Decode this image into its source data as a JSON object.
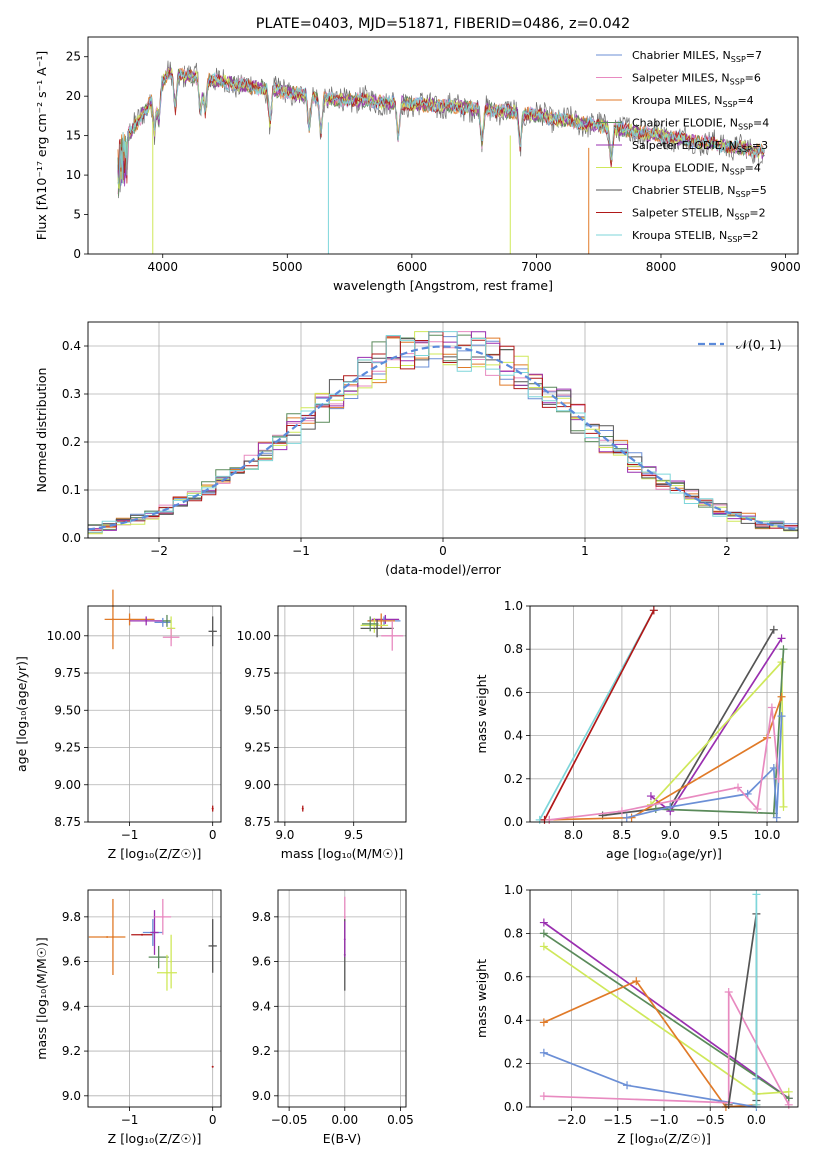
{
  "title": "PLATE=0403, MJD=51871, FIBERID=0486, z=0.042",
  "colors": {
    "Chabrier MILES": "#6b8fd6",
    "Salpeter MILES": "#e88ac0",
    "Kroupa MILES": "#e07a28",
    "Chabrier ELODIE": "#5a8a5a",
    "Salpeter ELODIE": "#9a2fb0",
    "Kroupa ELODIE": "#cfe85a",
    "Chabrier STELIB": "#555555",
    "Salpeter STELIB": "#b01818",
    "Kroupa STELIB": "#7ed6da",
    "normal": "#5b8bdb"
  },
  "chart_data": [
    {
      "id": "spectrum",
      "type": "line",
      "title": "PLATE=0403, MJD=51871, FIBERID=0486, z=0.042",
      "xlabel": "wavelength [Angstrom, rest frame]",
      "ylabel": "Flux [fλ10⁻¹⁷ erg cm⁻² s⁻¹ A⁻¹]",
      "xlim": [
        3400,
        9100
      ],
      "ylim": [
        0,
        27.5
      ],
      "xticks": [
        4000,
        5000,
        6000,
        7000,
        8000,
        9000
      ],
      "yticks": [
        0,
        5,
        10,
        15,
        20,
        25
      ],
      "legend_position": "top-right",
      "legend": [
        {
          "name": "Chabrier MILES",
          "nssp": "7"
        },
        {
          "name": "Salpeter MILES",
          "nssp": "6"
        },
        {
          "name": "Kroupa MILES",
          "nssp": "4"
        },
        {
          "name": "Chabrier ELODIE",
          "nssp": "4"
        },
        {
          "name": "Salpeter ELODIE",
          "nssp": "3"
        },
        {
          "name": "Kroupa ELODIE",
          "nssp": "4"
        },
        {
          "name": "Chabrier STELIB",
          "nssp": "5"
        },
        {
          "name": "Salpeter STELIB",
          "nssp": "2"
        },
        {
          "name": "Kroupa STELIB",
          "nssp": "2"
        }
      ],
      "continuum": {
        "x": [
          3650,
          3750,
          3850,
          3950,
          4050,
          4200,
          4400,
          4600,
          4800,
          5000,
          5200,
          5400,
          5600,
          5800,
          6000,
          6200,
          6400,
          6600,
          6800,
          7000,
          7200,
          7400,
          7600,
          7800,
          8000,
          8200,
          8400,
          8600,
          8800
        ],
        "y": [
          14.5,
          15.5,
          18,
          20.5,
          23,
          22.5,
          22,
          21.5,
          21,
          20.5,
          20,
          19.5,
          19.5,
          19.2,
          19,
          18.8,
          18.6,
          18.3,
          18,
          17.6,
          17,
          16.5,
          16,
          15.5,
          15,
          14.5,
          14,
          13.5,
          13
        ]
      },
      "data_range": [
        3640,
        8830
      ],
      "drops": [
        {
          "x": 3920,
          "y": 0,
          "series": "Kroupa ELODIE"
        },
        {
          "x": 5330,
          "y": 0,
          "series": "Kroupa STELIB"
        },
        {
          "x": 6790,
          "y": 0,
          "series": "Kroupa ELODIE"
        },
        {
          "x": 7420,
          "y": 0,
          "series": "Kroupa MILES"
        }
      ]
    },
    {
      "id": "residuals",
      "type": "bar",
      "xlabel": "(data-model)/error",
      "ylabel": "Normed distribution",
      "xlim": [
        -2.5,
        2.5
      ],
      "ylim": [
        0,
        0.45
      ],
      "xticks": [
        -2,
        -1,
        0,
        1,
        2
      ],
      "yticks": [
        0.0,
        0.1,
        0.2,
        0.3,
        0.4
      ],
      "legend": {
        "label": "𝒩(0, 1)",
        "position": "top-right"
      },
      "bin_width": 0.1,
      "grid": true
    },
    {
      "id": "age_vs_Z",
      "type": "scatter",
      "xlabel": "Z [log₁₀(Z/Z☉)]",
      "ylabel": "age  [log₁₀(age/yr)]",
      "xlim": [
        -1.5,
        0.1
      ],
      "ylim": [
        8.75,
        10.2
      ],
      "xticks": [
        -1,
        0
      ],
      "yticks": [
        8.75,
        9.0,
        9.25,
        9.5,
        9.75,
        10.0
      ],
      "grid": true,
      "points": [
        {
          "x": -1.0,
          "y": 10.11,
          "xe": 0.3,
          "ye": 0.04,
          "series": "Kroupa MILES"
        },
        {
          "x": -1.2,
          "y": 10.11,
          "xe": 0.0,
          "ye": 0.2,
          "series": "Kroupa MILES"
        },
        {
          "x": -0.8,
          "y": 10.1,
          "xe": 0.2,
          "ye": 0.03,
          "series": "Salpeter ELODIE"
        },
        {
          "x": -0.6,
          "y": 10.09,
          "xe": 0.1,
          "ye": 0.03,
          "series": "Chabrier MILES"
        },
        {
          "x": -0.55,
          "y": 10.1,
          "xe": 0.05,
          "ye": 0.04,
          "series": "Chabrier ELODIE"
        },
        {
          "x": -0.5,
          "y": 10.05,
          "xe": 0.05,
          "ye": 0.08,
          "series": "Kroupa ELODIE"
        },
        {
          "x": -0.5,
          "y": 9.99,
          "xe": 0.1,
          "ye": 0.06,
          "series": "Salpeter MILES"
        },
        {
          "x": 0.0,
          "y": 10.03,
          "xe": 0.05,
          "ye": 0.1,
          "series": "Chabrier STELIB"
        },
        {
          "x": 0.0,
          "y": 8.84,
          "xe": 0.0,
          "ye": 0.02,
          "series": "Salpeter STELIB"
        }
      ]
    },
    {
      "id": "age_vs_mass",
      "type": "scatter",
      "xlabel": "mass [log₁₀(M/M☉)]",
      "ylabel": "",
      "xlim": [
        8.95,
        9.88
      ],
      "ylim": [
        8.75,
        10.2
      ],
      "xticks": [
        9.0,
        9.5
      ],
      "yticks": [
        8.75,
        9.0,
        9.25,
        9.5,
        9.75,
        10.0
      ],
      "grid": true,
      "points": [
        {
          "x": 9.73,
          "y": 10.11,
          "xe": 0.1,
          "ye": 0.03,
          "series": "Salpeter ELODIE"
        },
        {
          "x": 9.72,
          "y": 10.1,
          "xe": 0.12,
          "ye": 0.03,
          "series": "Chabrier MILES"
        },
        {
          "x": 9.7,
          "y": 10.1,
          "xe": 0.1,
          "ye": 0.05,
          "series": "Kroupa MILES"
        },
        {
          "x": 9.65,
          "y": 10.07,
          "xe": 0.1,
          "ye": 0.05,
          "series": "Kroupa ELODIE"
        },
        {
          "x": 9.67,
          "y": 10.05,
          "xe": 0.12,
          "ye": 0.06,
          "series": "Chabrier STELIB"
        },
        {
          "x": 9.78,
          "y": 10.0,
          "xe": 0.08,
          "ye": 0.1,
          "series": "Salpeter MILES"
        },
        {
          "x": 9.62,
          "y": 10.08,
          "xe": 0.06,
          "ye": 0.05,
          "series": "Chabrier ELODIE"
        },
        {
          "x": 9.13,
          "y": 8.84,
          "xe": 0.0,
          "ye": 0.02,
          "series": "Salpeter STELIB"
        }
      ]
    },
    {
      "id": "weight_vs_age",
      "type": "line",
      "xlabel": "age  [log₁₀(age/yr)]",
      "ylabel": "mass weight",
      "xlim": [
        7.55,
        10.32
      ],
      "ylim": [
        0,
        1.0
      ],
      "xticks": [
        8.0,
        8.5,
        9.0,
        9.5,
        10.0
      ],
      "yticks": [
        0.0,
        0.2,
        0.4,
        0.6,
        0.8,
        1.0
      ],
      "grid": true,
      "series": [
        {
          "name": "Kroupa STELIB",
          "x": [
            7.65,
            8.83
          ],
          "y": [
            0.01,
            0.98
          ]
        },
        {
          "name": "Salpeter STELIB",
          "x": [
            7.7,
            8.83
          ],
          "y": [
            0.01,
            0.98
          ]
        },
        {
          "name": "Chabrier STELIB",
          "x": [
            8.3,
            9.0,
            10.07
          ],
          "y": [
            0.03,
            0.07,
            0.89
          ]
        },
        {
          "name": "Salpeter ELODIE",
          "x": [
            8.8,
            9.0,
            10.15
          ],
          "y": [
            0.12,
            0.05,
            0.85
          ]
        },
        {
          "name": "Kroupa ELODIE",
          "x": [
            8.8,
            10.15,
            10.17
          ],
          "y": [
            0.08,
            0.74,
            0.07
          ]
        },
        {
          "name": "Chabrier ELODIE",
          "x": [
            8.85,
            10.07,
            10.17
          ],
          "y": [
            0.06,
            0.04,
            0.8
          ]
        },
        {
          "name": "Kroupa MILES",
          "x": [
            7.75,
            8.6,
            10.0,
            10.15
          ],
          "y": [
            0.01,
            0.02,
            0.39,
            0.58
          ]
        },
        {
          "name": "Chabrier MILES",
          "x": [
            8.55,
            9.0,
            9.8,
            10.07,
            10.1,
            10.15
          ],
          "y": [
            0.02,
            0.07,
            0.13,
            0.25,
            0.02,
            0.49
          ]
        },
        {
          "name": "Salpeter MILES",
          "x": [
            7.75,
            8.5,
            9.7,
            9.9,
            10.05,
            10.12
          ],
          "y": [
            0.01,
            0.05,
            0.16,
            0.06,
            0.53,
            0.2
          ]
        }
      ]
    },
    {
      "id": "mass_vs_Z",
      "type": "scatter",
      "xlabel": "Z [log₁₀(Z/Z☉)]",
      "ylabel": "mass [log₁₀(M/M☉)]",
      "xlim": [
        -1.5,
        0.1
      ],
      "ylim": [
        8.95,
        9.92
      ],
      "xticks": [
        -1,
        0
      ],
      "yticks": [
        9.0,
        9.2,
        9.4,
        9.6,
        9.8
      ],
      "grid": true,
      "points": [
        {
          "x": -1.27,
          "y": 9.71,
          "xe": 0.22,
          "ye": 0.0,
          "series": "Kroupa MILES"
        },
        {
          "x": -1.2,
          "y": 9.71,
          "xe": 0.0,
          "ye": 0.17,
          "series": "Kroupa MILES"
        },
        {
          "x": -0.85,
          "y": 9.72,
          "xe": 0.13,
          "ye": 0.0,
          "series": "Salpeter STELIB"
        },
        {
          "x": -0.72,
          "y": 9.73,
          "xe": 0.12,
          "ye": 0.06,
          "series": "Chabrier MILES"
        },
        {
          "x": -0.7,
          "y": 9.73,
          "xe": 0.05,
          "ye": 0.1,
          "series": "Salpeter ELODIE"
        },
        {
          "x": -0.6,
          "y": 9.8,
          "xe": 0.1,
          "ye": 0.08,
          "series": "Salpeter MILES"
        },
        {
          "x": -0.65,
          "y": 9.62,
          "xe": 0.12,
          "ye": 0.05,
          "series": "Chabrier ELODIE"
        },
        {
          "x": -0.55,
          "y": 9.55,
          "xe": 0.12,
          "ye": 0.08,
          "series": "Kroupa ELODIE"
        },
        {
          "x": -0.5,
          "y": 9.6,
          "xe": 0.0,
          "ye": 0.12,
          "series": "Kroupa ELODIE"
        },
        {
          "x": 0.0,
          "y": 9.67,
          "xe": 0.05,
          "ye": 0.12,
          "series": "Chabrier STELIB"
        },
        {
          "x": 0.0,
          "y": 9.13,
          "xe": 0.0,
          "ye": 0.0,
          "series": "Salpeter STELIB"
        }
      ]
    },
    {
      "id": "mass_vs_ebv",
      "type": "scatter",
      "xlabel": "E(B-V)",
      "ylabel": "",
      "xlim": [
        -0.06,
        0.055
      ],
      "ylim": [
        8.95,
        9.92
      ],
      "xticks": [
        -0.05,
        0.0,
        0.05
      ],
      "yticks": [
        9.0,
        9.2,
        9.4,
        9.6,
        9.8
      ],
      "grid": true,
      "points": [
        {
          "x": 0.0,
          "y": 9.8,
          "xe": 0.0,
          "ye": 0.09,
          "series": "Salpeter MILES"
        },
        {
          "x": 0.0,
          "y": 9.63,
          "xe": 0.0,
          "ye": 0.16,
          "series": "Chabrier STELIB"
        },
        {
          "x": 0.0,
          "y": 9.7,
          "xe": 0.0,
          "ye": 0.08,
          "series": "Salpeter ELODIE"
        }
      ]
    },
    {
      "id": "weight_vs_Z",
      "type": "line",
      "xlabel": "Z [log₁₀(Z/Z☉)]",
      "ylabel": "mass weight",
      "xlim": [
        -2.45,
        0.45
      ],
      "ylim": [
        0,
        1.0
      ],
      "xticks": [
        -2.0,
        -1.5,
        -1.0,
        -0.5,
        0.0
      ],
      "yticks": [
        0.0,
        0.2,
        0.4,
        0.6,
        0.8,
        1.0
      ],
      "grid": true,
      "series": [
        {
          "name": "Salpeter ELODIE",
          "x": [
            -2.3,
            0.35
          ],
          "y": [
            0.85,
            0.04
          ]
        },
        {
          "name": "Chabrier ELODIE",
          "x": [
            -2.3,
            0.35
          ],
          "y": [
            0.8,
            0.04
          ]
        },
        {
          "name": "Kroupa ELODIE",
          "x": [
            -2.3,
            0.0,
            0.35
          ],
          "y": [
            0.74,
            0.06,
            0.07
          ]
        },
        {
          "name": "Kroupa MILES",
          "x": [
            -2.3,
            -1.3,
            -0.33,
            0.0
          ],
          "y": [
            0.39,
            0.58,
            0.0,
            0.01
          ]
        },
        {
          "name": "Chabrier MILES",
          "x": [
            -2.3,
            -1.4,
            0.0,
            0.0
          ],
          "y": [
            0.25,
            0.1,
            0.0,
            0.13
          ]
        },
        {
          "name": "Salpeter MILES",
          "x": [
            -2.3,
            -0.3,
            -0.3,
            0.35
          ],
          "y": [
            0.05,
            0.02,
            0.53,
            0.01
          ]
        },
        {
          "name": "Chabrier STELIB",
          "x": [
            -0.3,
            0.0,
            0.0
          ],
          "y": [
            0.01,
            0.89,
            0.03
          ]
        },
        {
          "name": "Kroupa STELIB",
          "x": [
            0.0,
            0.0
          ],
          "y": [
            0.01,
            0.98
          ]
        }
      ]
    }
  ]
}
